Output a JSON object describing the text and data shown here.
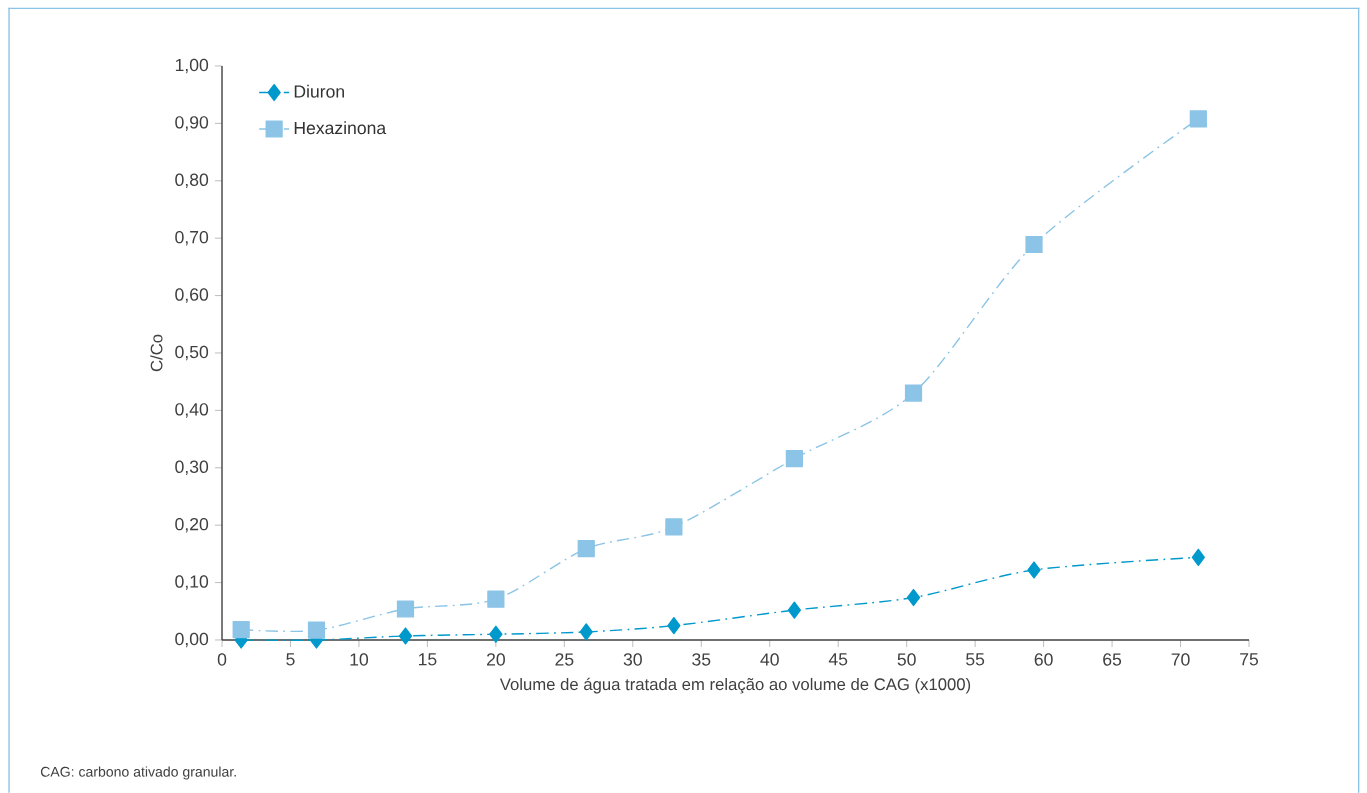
{
  "chart_data": {
    "type": "line",
    "xlabel": "Volume de água tratada em relação ao volume de CAG (x1000)",
    "ylabel": "C/Co",
    "annotations": [
      "CAG: carbono ativado granular."
    ],
    "series": [
      {
        "name": "Diuron",
        "color": "#0099cc",
        "marker": "diamond",
        "x": [
          1.4,
          6.9,
          13.4,
          20.0,
          26.6,
          33.0,
          41.8,
          50.5,
          59.3,
          71.3
        ],
        "values": [
          0.0,
          0.0,
          0.007,
          0.01,
          0.014,
          0.025,
          0.052,
          0.074,
          0.122,
          0.144
        ]
      },
      {
        "name": "Hexazinona",
        "color": "#8bc4e6",
        "marker": "square",
        "x": [
          1.4,
          6.9,
          13.4,
          20.0,
          26.6,
          33.0,
          41.8,
          50.5,
          59.3,
          71.3
        ],
        "values": [
          0.018,
          0.017,
          0.054,
          0.071,
          0.159,
          0.197,
          0.316,
          0.43,
          0.689,
          0.908
        ]
      }
    ],
    "line_style": "dashed",
    "legend": "top left",
    "xlim": [
      0,
      75
    ],
    "xticks": [
      0,
      5,
      10,
      15,
      20,
      25,
      30,
      35,
      40,
      45,
      50,
      55,
      60,
      65,
      70,
      75
    ],
    "ylim": [
      0,
      1
    ],
    "yticks": [
      {
        "value": 0,
        "label": "0,00"
      },
      {
        "value": 0.1,
        "label": "0,10"
      },
      {
        "value": 0.2,
        "label": "0,20"
      },
      {
        "value": 0.3,
        "label": "0,30"
      },
      {
        "value": 0.4,
        "label": "0,40"
      },
      {
        "value": 0.5,
        "label": "0,50"
      },
      {
        "value": 0.6,
        "label": "0,60"
      },
      {
        "value": 0.7,
        "label": "0,70"
      },
      {
        "value": 0.8,
        "label": "0,80"
      },
      {
        "value": 0.9,
        "label": "0,90"
      },
      {
        "value": 1,
        "label": "1,00"
      }
    ]
  }
}
